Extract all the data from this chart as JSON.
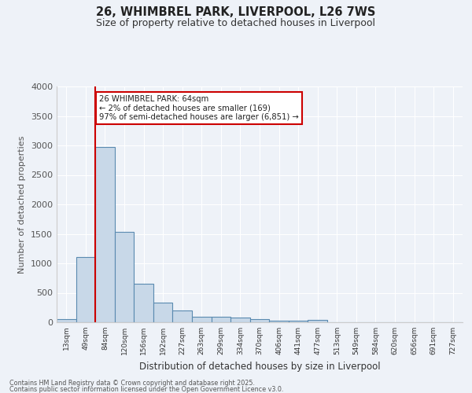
{
  "title1": "26, WHIMBREL PARK, LIVERPOOL, L26 7WS",
  "title2": "Size of property relative to detached houses in Liverpool",
  "xlabel": "Distribution of detached houses by size in Liverpool",
  "ylabel": "Number of detached properties",
  "bar_labels": [
    "13sqm",
    "49sqm",
    "84sqm",
    "120sqm",
    "156sqm",
    "192sqm",
    "227sqm",
    "263sqm",
    "299sqm",
    "334sqm",
    "370sqm",
    "406sqm",
    "441sqm",
    "477sqm",
    "513sqm",
    "549sqm",
    "584sqm",
    "620sqm",
    "656sqm",
    "691sqm",
    "727sqm"
  ],
  "bar_values": [
    60,
    1110,
    2970,
    1530,
    650,
    340,
    205,
    100,
    90,
    75,
    50,
    30,
    30,
    40,
    0,
    0,
    0,
    0,
    0,
    0,
    0
  ],
  "bar_color": "#c8d8e8",
  "bar_edge_color": "#5a8ab0",
  "red_line_x": 1.5,
  "annotation_text": "26 WHIMBREL PARK: 64sqm\n← 2% of detached houses are smaller (169)\n97% of semi-detached houses are larger (6,851) →",
  "annotation_box_color": "#ffffff",
  "annotation_box_edge": "#cc0000",
  "ylim": [
    0,
    4000
  ],
  "yticks": [
    0,
    500,
    1000,
    1500,
    2000,
    2500,
    3000,
    3500,
    4000
  ],
  "background_color": "#eef2f8",
  "footer1": "Contains HM Land Registry data © Crown copyright and database right 2025.",
  "footer2": "Contains public sector information licensed under the Open Government Licence v3.0.",
  "red_line_color": "#cc0000",
  "grid_color": "#ffffff"
}
